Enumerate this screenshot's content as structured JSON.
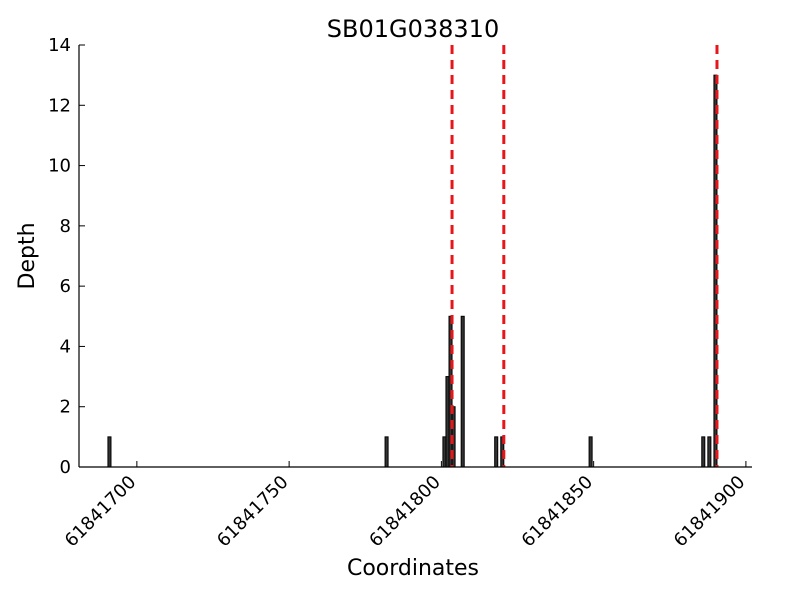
{
  "chart_data": {
    "type": "bar",
    "title": "SB01G038310",
    "xlabel": "Coordinates",
    "ylabel": "Depth",
    "xlim": [
      61841681,
      61841902
    ],
    "ylim": [
      0,
      14
    ],
    "x_ticks": [
      61841700,
      61841750,
      61841800,
      61841850,
      61841900
    ],
    "y_ticks": [
      0,
      2,
      4,
      6,
      8,
      10,
      12,
      14
    ],
    "grid": false,
    "bar_color": "#333333",
    "bar_edge_color": "#000000",
    "bars": [
      {
        "x": 61841691,
        "y": 1
      },
      {
        "x": 61841782,
        "y": 1
      },
      {
        "x": 61841801,
        "y": 1
      },
      {
        "x": 61841802,
        "y": 3
      },
      {
        "x": 61841803,
        "y": 5
      },
      {
        "x": 61841804,
        "y": 2
      },
      {
        "x": 61841807,
        "y": 5
      },
      {
        "x": 61841818,
        "y": 1
      },
      {
        "x": 61841820,
        "y": 1
      },
      {
        "x": 61841849,
        "y": 1
      },
      {
        "x": 61841886,
        "y": 1
      },
      {
        "x": 61841888,
        "y": 1
      },
      {
        "x": 61841890,
        "y": 13
      }
    ],
    "vlines": [
      {
        "x": 61841803.5,
        "color": "#e8161b",
        "style": "dashed"
      },
      {
        "x": 61841820.5,
        "color": "#e8161b",
        "style": "dashed"
      },
      {
        "x": 61841890.5,
        "color": "#e8161b",
        "style": "dashed"
      }
    ]
  }
}
